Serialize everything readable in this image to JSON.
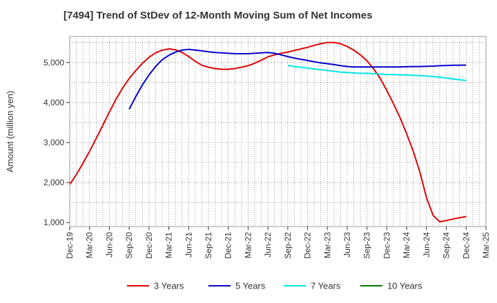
{
  "chart_data": {
    "type": "line",
    "title": "[7494]  Trend of StDev of 12-Month Moving Sum of Net Incomes",
    "ylabel": "Amount (million yen)",
    "ylim": [
      900,
      5650
    ],
    "yticks": [
      1000,
      2000,
      3000,
      4000,
      5000
    ],
    "ytick_labels": [
      "1,000",
      "2,000",
      "3,000",
      "4,000",
      "5,000"
    ],
    "xlim": [
      "2019-12",
      "2025-03"
    ],
    "xticks": [
      "2019-12",
      "2020-03",
      "2020-06",
      "2020-09",
      "2020-12",
      "2021-03",
      "2021-06",
      "2021-09",
      "2021-12",
      "2022-03",
      "2022-06",
      "2022-09",
      "2022-12",
      "2023-03",
      "2023-06",
      "2023-09",
      "2023-12",
      "2024-03",
      "2024-06",
      "2024-09",
      "2024-12",
      "2025-03"
    ],
    "xtick_labels": [
      "Dec-19",
      "Mar-20",
      "Jun-20",
      "Sep-20",
      "Dec-20",
      "Mar-21",
      "Jun-21",
      "Sep-21",
      "Dec-21",
      "Mar-22",
      "Jun-22",
      "Sep-22",
      "Dec-22",
      "Mar-23",
      "Jun-23",
      "Sep-23",
      "Dec-23",
      "Mar-24",
      "Jun-24",
      "Sep-24",
      "Dec-24",
      "Mar-25"
    ],
    "grid": true,
    "legend_position": "bottom",
    "series": [
      {
        "name": "3 Years",
        "color": "#dd0000",
        "points": [
          [
            "2019-12",
            1950
          ],
          [
            "2020-01",
            2200
          ],
          [
            "2020-02",
            2480
          ],
          [
            "2020-03",
            2780
          ],
          [
            "2020-04",
            3100
          ],
          [
            "2020-05",
            3430
          ],
          [
            "2020-06",
            3760
          ],
          [
            "2020-07",
            4080
          ],
          [
            "2020-08",
            4360
          ],
          [
            "2020-09",
            4600
          ],
          [
            "2020-10",
            4800
          ],
          [
            "2020-11",
            4980
          ],
          [
            "2020-12",
            5130
          ],
          [
            "2021-01",
            5240
          ],
          [
            "2021-02",
            5310
          ],
          [
            "2021-03",
            5340
          ],
          [
            "2021-04",
            5320
          ],
          [
            "2021-05",
            5250
          ],
          [
            "2021-06",
            5150
          ],
          [
            "2021-07",
            5030
          ],
          [
            "2021-08",
            4930
          ],
          [
            "2021-09",
            4880
          ],
          [
            "2021-10",
            4850
          ],
          [
            "2021-11",
            4830
          ],
          [
            "2021-12",
            4830
          ],
          [
            "2022-01",
            4850
          ],
          [
            "2022-02",
            4880
          ],
          [
            "2022-03",
            4920
          ],
          [
            "2022-04",
            4980
          ],
          [
            "2022-05",
            5060
          ],
          [
            "2022-06",
            5140
          ],
          [
            "2022-07",
            5190
          ],
          [
            "2022-08",
            5230
          ],
          [
            "2022-09",
            5260
          ],
          [
            "2022-10",
            5300
          ],
          [
            "2022-11",
            5340
          ],
          [
            "2022-12",
            5380
          ],
          [
            "2023-01",
            5430
          ],
          [
            "2023-02",
            5470
          ],
          [
            "2023-03",
            5500
          ],
          [
            "2023-04",
            5500
          ],
          [
            "2023-05",
            5470
          ],
          [
            "2023-06",
            5400
          ],
          [
            "2023-07",
            5310
          ],
          [
            "2023-08",
            5190
          ],
          [
            "2023-09",
            5040
          ],
          [
            "2023-10",
            4840
          ],
          [
            "2023-11",
            4600
          ],
          [
            "2023-12",
            4300
          ],
          [
            "2024-01",
            3970
          ],
          [
            "2024-02",
            3620
          ],
          [
            "2024-03",
            3220
          ],
          [
            "2024-04",
            2780
          ],
          [
            "2024-05",
            2260
          ],
          [
            "2024-06",
            1620
          ],
          [
            "2024-07",
            1180
          ],
          [
            "2024-08",
            1020
          ],
          [
            "2024-09",
            1050
          ],
          [
            "2024-10",
            1090
          ],
          [
            "2024-11",
            1120
          ],
          [
            "2024-12",
            1150
          ]
        ]
      },
      {
        "name": "5 Years",
        "color": "#0000cc",
        "points": [
          [
            "2020-09",
            3830
          ],
          [
            "2020-10",
            4150
          ],
          [
            "2020-11",
            4440
          ],
          [
            "2020-12",
            4690
          ],
          [
            "2021-01",
            4900
          ],
          [
            "2021-02",
            5070
          ],
          [
            "2021-03",
            5180
          ],
          [
            "2021-04",
            5260
          ],
          [
            "2021-05",
            5310
          ],
          [
            "2021-06",
            5330
          ],
          [
            "2021-07",
            5310
          ],
          [
            "2021-08",
            5290
          ],
          [
            "2021-09",
            5270
          ],
          [
            "2021-10",
            5250
          ],
          [
            "2021-11",
            5240
          ],
          [
            "2021-12",
            5230
          ],
          [
            "2022-01",
            5220
          ],
          [
            "2022-02",
            5220
          ],
          [
            "2022-03",
            5220
          ],
          [
            "2022-04",
            5230
          ],
          [
            "2022-05",
            5240
          ],
          [
            "2022-06",
            5250
          ],
          [
            "2022-07",
            5230
          ],
          [
            "2022-08",
            5190
          ],
          [
            "2022-09",
            5150
          ],
          [
            "2022-10",
            5110
          ],
          [
            "2022-11",
            5080
          ],
          [
            "2022-12",
            5050
          ],
          [
            "2023-01",
            5020
          ],
          [
            "2023-02",
            4990
          ],
          [
            "2023-03",
            4970
          ],
          [
            "2023-04",
            4950
          ],
          [
            "2023-05",
            4920
          ],
          [
            "2023-06",
            4900
          ],
          [
            "2023-07",
            4890
          ],
          [
            "2023-08",
            4890
          ],
          [
            "2023-09",
            4890
          ],
          [
            "2023-10",
            4890
          ],
          [
            "2023-11",
            4890
          ],
          [
            "2023-12",
            4890
          ],
          [
            "2024-01",
            4890
          ],
          [
            "2024-02",
            4890
          ],
          [
            "2024-03",
            4895
          ],
          [
            "2024-04",
            4900
          ],
          [
            "2024-05",
            4900
          ],
          [
            "2024-06",
            4905
          ],
          [
            "2024-07",
            4910
          ],
          [
            "2024-08",
            4920
          ],
          [
            "2024-09",
            4925
          ],
          [
            "2024-10",
            4930
          ],
          [
            "2024-11",
            4930
          ],
          [
            "2024-12",
            4935
          ]
        ]
      },
      {
        "name": "7 Years",
        "color": "#00e5e5",
        "points": [
          [
            "2022-09",
            4930
          ],
          [
            "2022-10",
            4900
          ],
          [
            "2022-11",
            4880
          ],
          [
            "2022-12",
            4860
          ],
          [
            "2023-01",
            4840
          ],
          [
            "2023-02",
            4820
          ],
          [
            "2023-03",
            4800
          ],
          [
            "2023-04",
            4780
          ],
          [
            "2023-05",
            4760
          ],
          [
            "2023-06",
            4750
          ],
          [
            "2023-07",
            4740
          ],
          [
            "2023-08",
            4730
          ],
          [
            "2023-09",
            4730
          ],
          [
            "2023-10",
            4720
          ],
          [
            "2023-11",
            4710
          ],
          [
            "2023-12",
            4700
          ],
          [
            "2024-01",
            4700
          ],
          [
            "2024-02",
            4690
          ],
          [
            "2024-03",
            4690
          ],
          [
            "2024-04",
            4680
          ],
          [
            "2024-05",
            4670
          ],
          [
            "2024-06",
            4660
          ],
          [
            "2024-07",
            4650
          ],
          [
            "2024-08",
            4630
          ],
          [
            "2024-09",
            4610
          ],
          [
            "2024-10",
            4590
          ],
          [
            "2024-11",
            4570
          ],
          [
            "2024-12",
            4550
          ]
        ]
      },
      {
        "name": "10 Years",
        "color": "#007700",
        "points": []
      }
    ]
  }
}
